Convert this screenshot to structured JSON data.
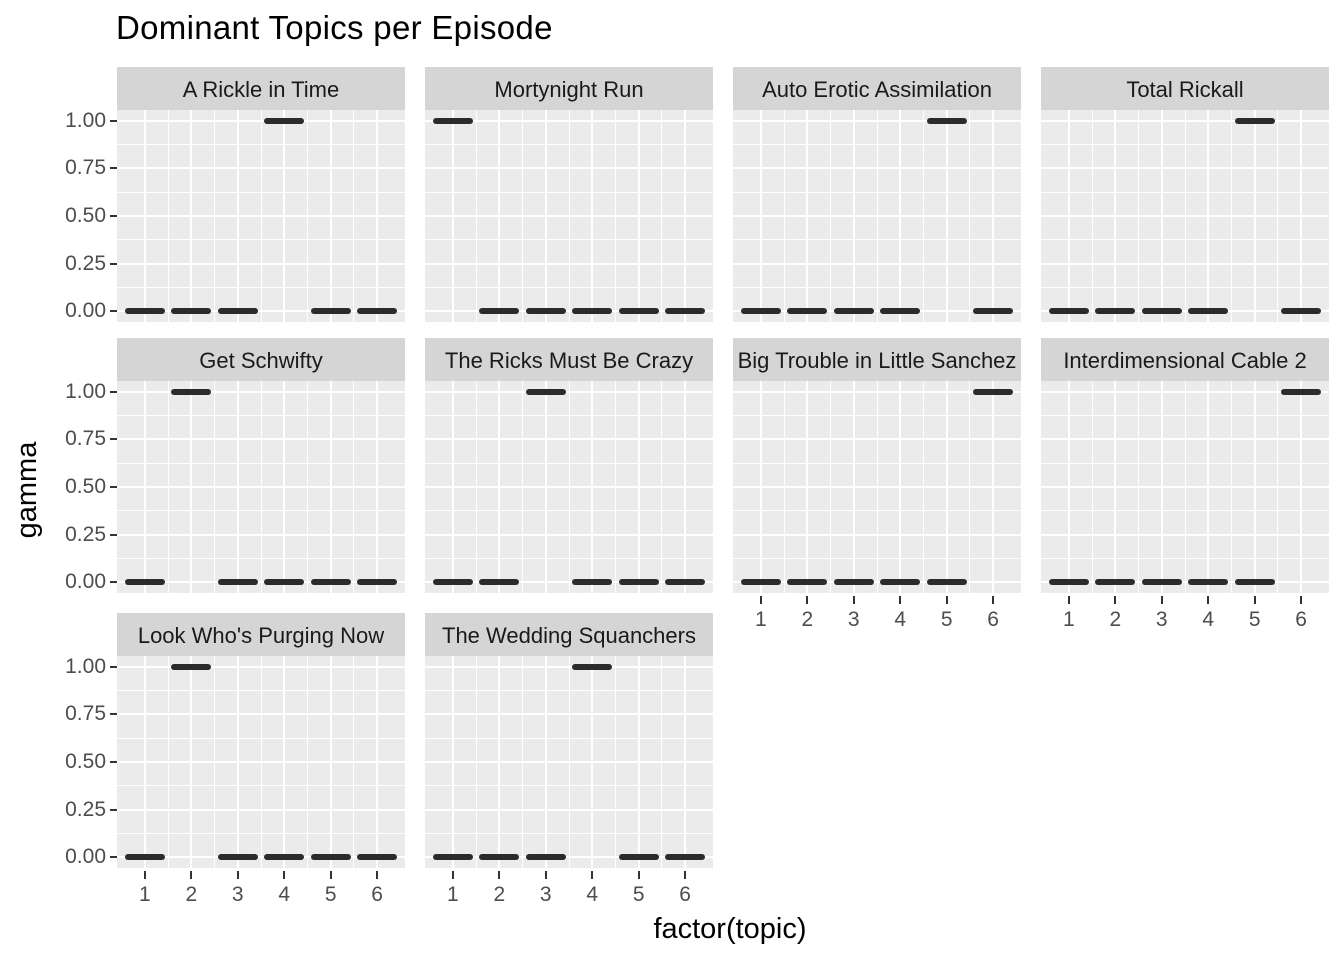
{
  "page": {
    "background": "#FFFFFF"
  },
  "chart_data": {
    "type": "scatter",
    "marker": "horizontal-dash",
    "title": "Dominant Topics per Episode",
    "xlabel": "factor(topic)",
    "ylabel": "gamma",
    "categories": [
      "1",
      "2",
      "3",
      "4",
      "5",
      "6"
    ],
    "ylim": [
      0,
      1
    ],
    "ytick_values": [
      1.0,
      0.75,
      0.5,
      0.25,
      0.0
    ],
    "ytick_labels": [
      "1.00",
      "0.75",
      "0.50",
      "0.25",
      "0.00"
    ],
    "grid": "white major and minor gridlines on gray panel",
    "legend": "none",
    "facet_layout": {
      "columns": 4,
      "rows": 3
    },
    "facets": [
      {
        "title": "A Rickle in Time",
        "values": [
          0,
          0,
          0,
          1,
          0,
          0
        ]
      },
      {
        "title": "Mortynight Run",
        "values": [
          1,
          0,
          0,
          0,
          0,
          0
        ]
      },
      {
        "title": "Auto Erotic Assimilation",
        "values": [
          0,
          0,
          0,
          0,
          1,
          0
        ]
      },
      {
        "title": "Total Rickall",
        "values": [
          0,
          0,
          0,
          0,
          1,
          0
        ]
      },
      {
        "title": "Get Schwifty",
        "values": [
          0,
          1,
          0,
          0,
          0,
          0
        ]
      },
      {
        "title": "The Ricks Must Be Crazy",
        "values": [
          0,
          0,
          1,
          0,
          0,
          0
        ]
      },
      {
        "title": "Big Trouble in Little Sanchez",
        "values": [
          0,
          0,
          0,
          0,
          0,
          1
        ]
      },
      {
        "title": "Interdimensional Cable 2",
        "values": [
          0,
          0,
          0,
          0,
          0,
          1
        ]
      },
      {
        "title": "Look Who's Purging Now",
        "values": [
          0,
          1,
          0,
          0,
          0,
          0
        ]
      },
      {
        "title": "The Wedding Squanchers",
        "values": [
          0,
          0,
          0,
          1,
          0,
          0
        ]
      }
    ]
  },
  "style": {
    "panel_background": "#EBEBEB",
    "strip_background": "#D5D5D5",
    "gridline_color": "#FFFFFF",
    "dash_color": "#2B2B2B",
    "tick_color": "#333333",
    "tick_label_color": "#4D4D4D",
    "strip_text_color": "#1A1A1A",
    "title_color": "#000000"
  }
}
